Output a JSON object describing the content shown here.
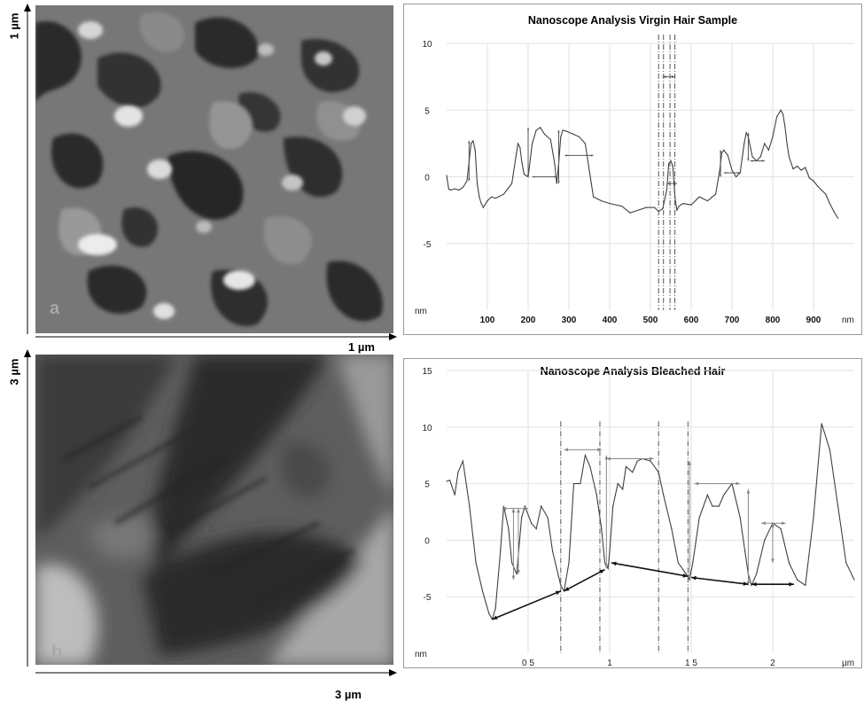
{
  "images": {
    "a": {
      "panel_letter": "a",
      "x_scale": "1 µm",
      "y_scale": "1 µm"
    },
    "b": {
      "panel_letter": "b",
      "x_scale": "3 µm",
      "y_scale": "3 µm"
    }
  },
  "chart_data": [
    {
      "type": "line",
      "title": "Nanoscope Analysis Virgin Hair Sample",
      "xlabel": "nm",
      "ylabel": "nm",
      "xlim": [
        0,
        1000
      ],
      "ylim": [
        -10,
        10
      ],
      "x_ticks": [
        100,
        200,
        300,
        400,
        500,
        600,
        700,
        800,
        900
      ],
      "x_tick_labels": [
        "100",
        "200",
        "300",
        "400",
        "500",
        "600",
        "700",
        "800",
        "900"
      ],
      "y_ticks": [
        10,
        5,
        0,
        -5
      ],
      "y_tick_labels": [
        "10",
        "5",
        "0",
        "-5"
      ],
      "grid": true,
      "series": [
        {
          "x": [
            0,
            5,
            10,
            20,
            30,
            40,
            50,
            60,
            65,
            70,
            75,
            80,
            85,
            90,
            100,
            110,
            120,
            140,
            160,
            170,
            175,
            180,
            185,
            190,
            200,
            210,
            220,
            230,
            240,
            255,
            265,
            270,
            275,
            280,
            285,
            295,
            310,
            325,
            340,
            350,
            355,
            360,
            380,
            400,
            430,
            450,
            470,
            490,
            510,
            520,
            530,
            540,
            545,
            550,
            555,
            560,
            565,
            570,
            580,
            600,
            620,
            640,
            660,
            670,
            675,
            680,
            690,
            700,
            710,
            720,
            730,
            735,
            740,
            750,
            760,
            770,
            780,
            790,
            800,
            810,
            820,
            825,
            830,
            835,
            840,
            850,
            860,
            870,
            880,
            890,
            900,
            910,
            920,
            930,
            940,
            950,
            960
          ],
          "values": [
            0.1,
            -0.9,
            -1.0,
            -0.9,
            -1.0,
            -0.8,
            -0.3,
            2.5,
            2.7,
            2.0,
            -0.5,
            -1.5,
            -2.0,
            -2.3,
            -1.8,
            -1.5,
            -1.6,
            -1.3,
            -0.5,
            1.5,
            2.5,
            2.2,
            1.0,
            0.2,
            0.0,
            2.5,
            3.5,
            3.7,
            3.2,
            2.8,
            1.0,
            -0.5,
            1.0,
            3.0,
            3.5,
            3.4,
            3.2,
            3.0,
            2.5,
            0.5,
            -0.5,
            -1.5,
            -1.8,
            -2.0,
            -2.2,
            -2.7,
            -2.5,
            -2.3,
            -2.3,
            -2.6,
            -2.4,
            -1.0,
            1.0,
            1.2,
            0.8,
            -1.5,
            -2.5,
            -2.2,
            -2.0,
            -2.1,
            -1.5,
            -1.8,
            -1.3,
            0.5,
            1.8,
            2.0,
            1.6,
            0.5,
            0.0,
            0.3,
            2.5,
            3.3,
            3.0,
            1.5,
            1.2,
            1.5,
            2.5,
            2.0,
            3.0,
            4.5,
            5.0,
            4.7,
            3.8,
            2.5,
            1.5,
            0.6,
            0.8,
            0.5,
            0.7,
            -0.1,
            -0.3,
            -0.7,
            -1.0,
            -1.3,
            -2.0,
            -2.6,
            -3.1
          ]
        }
      ]
    },
    {
      "type": "line",
      "title": "Nanoscope Analysis Bleached Hair",
      "xlabel": "µm",
      "ylabel": "nm",
      "xlim": [
        0,
        2.5
      ],
      "ylim": [
        -10,
        15
      ],
      "x_ticks": [
        0.5,
        1,
        1.5,
        2
      ],
      "x_tick_labels": [
        "0 5",
        "1",
        "1 5",
        "2"
      ],
      "y_ticks": [
        15,
        10,
        5,
        0,
        -5
      ],
      "y_tick_labels": [
        "15",
        "10",
        "5",
        "0",
        "-5"
      ],
      "grid": true,
      "series": [
        {
          "x": [
            0,
            0.02,
            0.05,
            0.07,
            0.1,
            0.14,
            0.18,
            0.22,
            0.26,
            0.28,
            0.3,
            0.33,
            0.35,
            0.38,
            0.4,
            0.43,
            0.46,
            0.48,
            0.52,
            0.55,
            0.58,
            0.62,
            0.65,
            0.7,
            0.72,
            0.75,
            0.78,
            0.82,
            0.85,
            0.88,
            0.92,
            0.95,
            0.97,
            0.99,
            1.0,
            1.02,
            1.05,
            1.08,
            1.1,
            1.14,
            1.17,
            1.2,
            1.25,
            1.3,
            1.33,
            1.38,
            1.42,
            1.47,
            1.49,
            1.51,
            1.55,
            1.6,
            1.63,
            1.67,
            1.7,
            1.75,
            1.8,
            1.83,
            1.85,
            1.87,
            1.9,
            1.95,
            2.0,
            2.05,
            2.1,
            2.15,
            2.2,
            2.25,
            2.3,
            2.35,
            2.4,
            2.45,
            2.5
          ],
          "values": [
            5.2,
            5.3,
            4.0,
            6.0,
            7.0,
            3.0,
            -2.0,
            -4.5,
            -6.5,
            -7.0,
            -6.0,
            -1.0,
            3.0,
            1.0,
            -2.0,
            -3.0,
            2.0,
            3.0,
            1.5,
            1.0,
            3.0,
            2.0,
            -1.0,
            -4.0,
            -4.5,
            -2.0,
            5.0,
            5.0,
            7.5,
            6.5,
            4.0,
            1.0,
            -2.0,
            -2.5,
            -1.0,
            3.0,
            5.0,
            4.5,
            6.5,
            6.0,
            7.0,
            7.2,
            7.0,
            6.0,
            4.0,
            1.0,
            -2.0,
            -3.0,
            -3.5,
            -2.0,
            2.0,
            4.0,
            3.0,
            3.0,
            4.0,
            5.0,
            2.0,
            -1.0,
            -3.0,
            -4.0,
            -3.0,
            0.0,
            1.5,
            1.0,
            -2.0,
            -3.5,
            -4.0,
            2.0,
            10.3,
            8.0,
            3.0,
            -2.0,
            -3.5
          ]
        }
      ]
    }
  ]
}
